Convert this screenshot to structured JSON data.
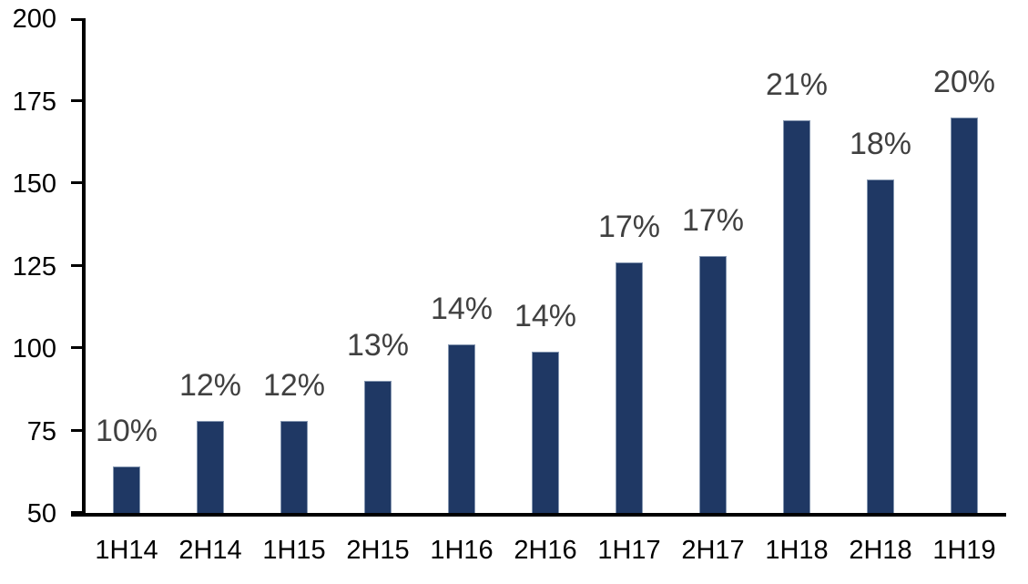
{
  "chart_data": {
    "type": "bar",
    "title": "",
    "categories": [
      "1H14",
      "2H14",
      "1H15",
      "2H15",
      "1H16",
      "2H16",
      "1H17",
      "2H17",
      "1H18",
      "2H18",
      "1H19"
    ],
    "series": [
      {
        "name": "value",
        "values": [
          64,
          78,
          78,
          90,
          101,
          99,
          126,
          128,
          169,
          151,
          170
        ]
      }
    ],
    "bar_labels": [
      "10%",
      "12%",
      "12%",
      "13%",
      "14%",
      "14%",
      "17%",
      "17%",
      "21%",
      "18%",
      "20%"
    ],
    "xlabel": "",
    "ylabel": "",
    "ylim": [
      50,
      200
    ],
    "yticks": [
      50,
      75,
      100,
      125,
      150,
      175,
      200
    ],
    "grid": false,
    "legend": false,
    "background": "#FFFFFF",
    "colors": {
      "bar_fill": "#1F3864",
      "bar_border": "#8496B0",
      "data_label": "#404040",
      "axis_text": "#000000",
      "axis_line": "#000000"
    }
  }
}
